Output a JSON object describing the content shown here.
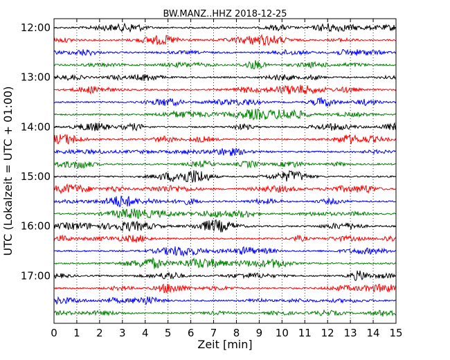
{
  "chart_data": {
    "type": "line",
    "title": "BW.MANZ..HHZ 2018-12-25",
    "xlabel": "Zeit  [min]",
    "ylabel": "UTC (Lokalzeit = UTC + 01:00)",
    "xlim": [
      0,
      15
    ],
    "x_ticks": [
      "0",
      "1",
      "2",
      "3",
      "4",
      "5",
      "6",
      "7",
      "8",
      "9",
      "10",
      "11",
      "12",
      "13",
      "14",
      "15"
    ],
    "y_ticks": [
      "12:00",
      "13:00",
      "14:00",
      "15:00",
      "16:00",
      "17:00"
    ],
    "grid": "vertical dotted",
    "colors": [
      "#000000",
      "#ff0000",
      "#0000ff",
      "#008000"
    ],
    "traces": [
      "12:00",
      "12:15",
      "12:30",
      "12:45",
      "13:00",
      "13:15",
      "13:30",
      "13:45",
      "14:00",
      "14:15",
      "14:30",
      "14:45",
      "15:00",
      "15:15",
      "15:30",
      "15:45",
      "16:00",
      "16:15",
      "16:30",
      "16:45",
      "17:00",
      "17:15",
      "17:30",
      "17:45"
    ]
  }
}
